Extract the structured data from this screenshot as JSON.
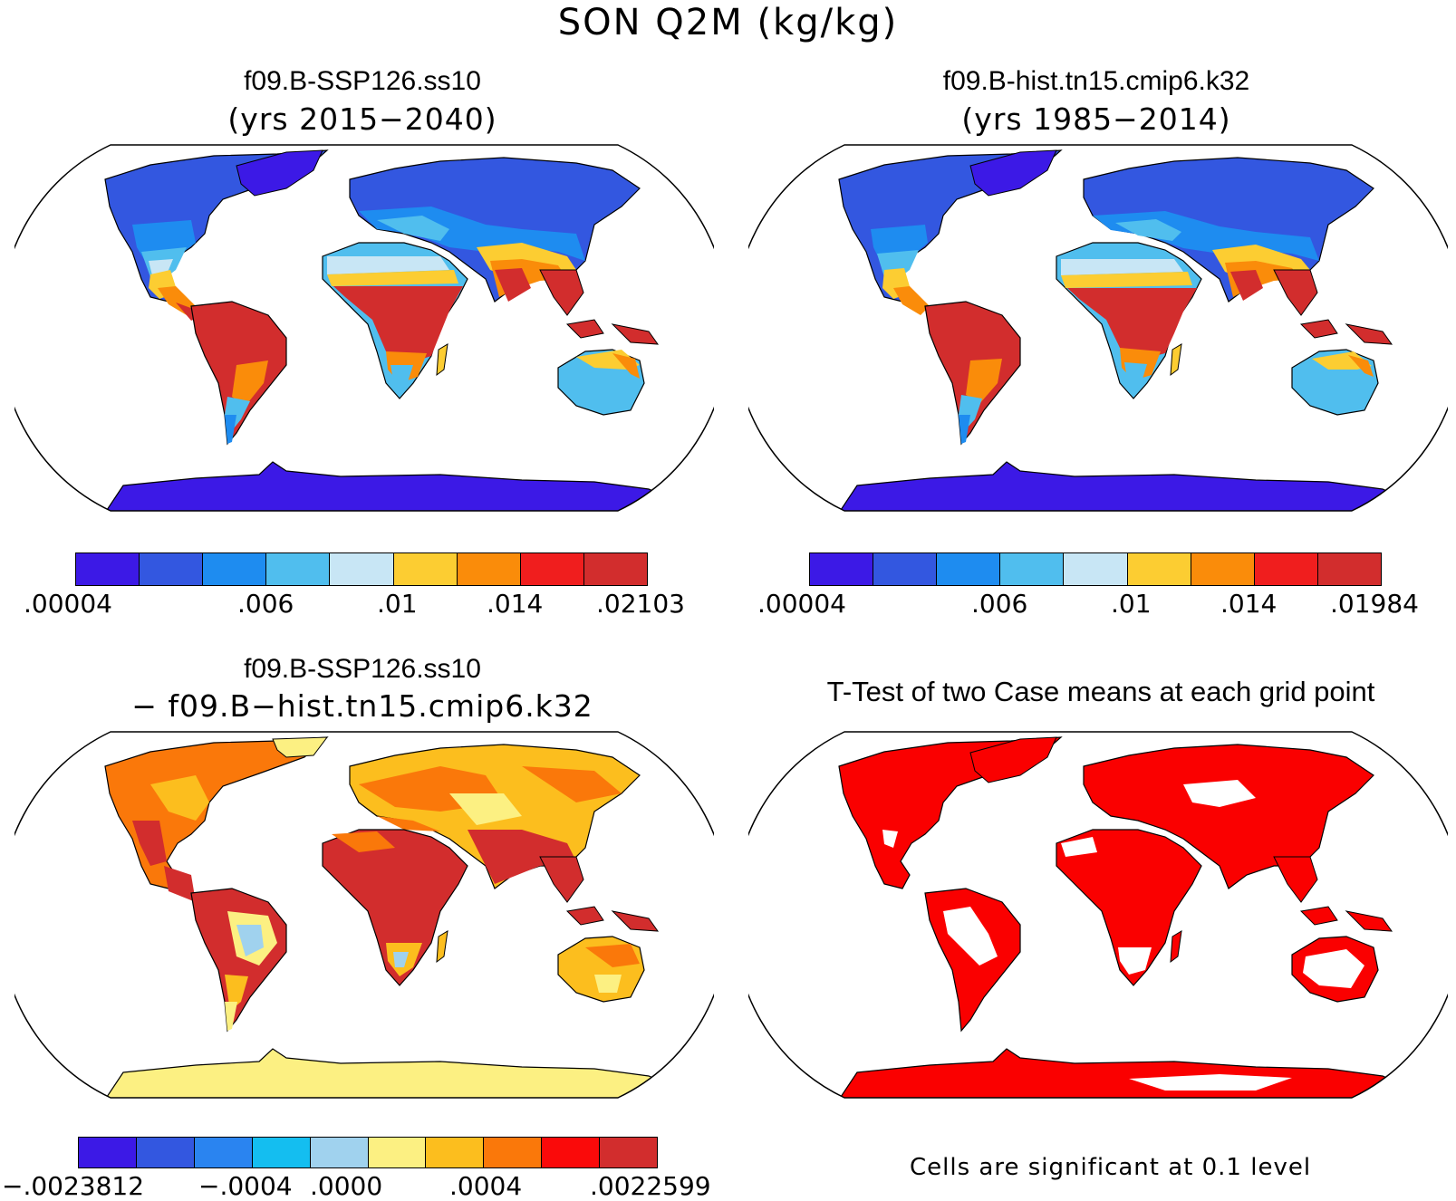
{
  "figure_title": "SON Q2M (kg/kg)",
  "panels": {
    "top_left": {
      "title": "f09.B-SSP126.ss10",
      "subtitle": "(yrs 2015−2040)",
      "colorbar": {
        "colors": [
          "#3c19e6",
          "#3357e0",
          "#1e8cf0",
          "#50beee",
          "#c8e6f5",
          "#fccd32",
          "#fa8c0a",
          "#f01e1e",
          "#d22d2d"
        ],
        "labels": [
          ".00004",
          ".006",
          ".01",
          ".014",
          ".02103"
        ]
      }
    },
    "top_right": {
      "title": "f09.B-hist.tn15.cmip6.k32",
      "subtitle": "(yrs 1985−2014)",
      "colorbar": {
        "colors": [
          "#3c19e6",
          "#3357e0",
          "#1e8cf0",
          "#50beee",
          "#c8e6f5",
          "#fccd32",
          "#fa8c0a",
          "#f01e1e",
          "#d22d2d"
        ],
        "labels": [
          ".00004",
          ".006",
          ".01",
          ".014",
          ".01984"
        ]
      }
    },
    "bottom_left": {
      "title": "f09.B-SSP126.ss10",
      "subtitle": "− f09.B−hist.tn15.cmip6.k32",
      "colorbar": {
        "colors": [
          "#3c19e6",
          "#3357e0",
          "#2a84f0",
          "#14bef0",
          "#a0d2ee",
          "#fcf082",
          "#fcbe1e",
          "#fa780a",
          "#fa0a0a",
          "#d22d2d"
        ],
        "labels": [
          "−.0023812",
          "−.0004",
          ".0000",
          ".0004",
          ".0022599"
        ]
      }
    },
    "bottom_right": {
      "title": "T-Test of two Case means at each grid point",
      "note": "Cells are significant at 0.1 level",
      "fill_color": "#fa0000"
    }
  }
}
